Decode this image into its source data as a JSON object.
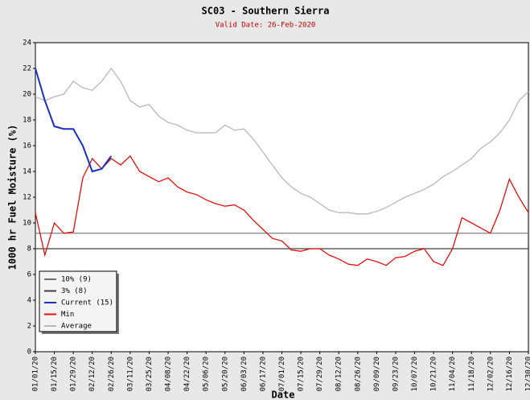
{
  "chart_data": {
    "type": "line",
    "title": "SC03 - Southern Sierra",
    "subtitle": "Valid Date: 26-Feb-2020",
    "x_label": "Date",
    "y_label": "1000 hr Fuel Moisture (%)",
    "categories": [
      "01/01/20",
      null,
      "01/15/20",
      null,
      "01/29/20",
      null,
      "02/12/20",
      null,
      "02/26/20",
      null,
      "03/11/20",
      null,
      "03/25/20",
      null,
      "04/08/20",
      null,
      "04/22/20",
      null,
      "05/06/20",
      null,
      "05/20/20",
      null,
      "06/03/20",
      null,
      "06/17/20",
      null,
      "07/01/20",
      null,
      "07/15/20",
      null,
      "07/29/20",
      null,
      "08/12/20",
      null,
      "08/26/20",
      null,
      "09/09/20",
      null,
      "09/23/20",
      null,
      "10/07/20",
      null,
      "10/21/20",
      null,
      "11/04/20",
      null,
      "11/18/20",
      null,
      "12/02/20",
      null,
      "12/16/20",
      null,
      "12/30/20"
    ],
    "ylim": [
      0,
      24
    ],
    "yticks": [
      0,
      2,
      4,
      6,
      8,
      10,
      12,
      14,
      16,
      18,
      20,
      22,
      24
    ],
    "thresholds": [
      {
        "name": "10% (9)",
        "color": "#707070",
        "value": 9.2
      },
      {
        "name": "3% (8)",
        "color": "#404040",
        "value": 8
      }
    ],
    "series": [
      {
        "name": "Current (15)",
        "color": "#1a2fc0",
        "values": [
          22.0,
          19.5,
          17.5,
          17.3,
          17.3,
          16.0,
          14.0,
          14.2,
          15.2,
          null,
          null,
          null,
          null,
          null,
          null,
          null,
          null,
          null,
          null,
          null,
          null,
          null,
          null,
          null,
          null,
          null,
          null,
          null,
          null,
          null,
          null,
          null,
          null,
          null,
          null,
          null,
          null,
          null,
          null,
          null,
          null,
          null,
          null,
          null,
          null,
          null,
          null,
          null,
          null,
          null,
          null,
          null,
          null
        ]
      },
      {
        "name": "Min",
        "color": "#e01010",
        "values": [
          10.8,
          7.5,
          10.0,
          9.2,
          9.3,
          13.5,
          15.0,
          14.2,
          15.0,
          14.5,
          15.2,
          14.0,
          13.6,
          13.2,
          13.5,
          12.8,
          12.4,
          12.2,
          11.8,
          11.5,
          11.3,
          11.4,
          11.0,
          10.2,
          9.5,
          8.8,
          8.6,
          7.9,
          7.8,
          8.0,
          8.0,
          7.5,
          7.2,
          6.8,
          6.7,
          7.2,
          7.0,
          6.7,
          7.3,
          7.4,
          7.8,
          8.0,
          7.0,
          6.7,
          8.0,
          10.4,
          10.0,
          9.6,
          9.2,
          11.0,
          13.4,
          12.0,
          10.8
        ]
      },
      {
        "name": "Average",
        "color": "#b8b8b8",
        "values": [
          19.8,
          19.5,
          19.8,
          20.0,
          21.0,
          20.5,
          20.3,
          21.0,
          22.0,
          21.0,
          19.5,
          19.0,
          19.2,
          18.3,
          17.8,
          17.6,
          17.2,
          17.0,
          17.0,
          17.0,
          17.6,
          17.2,
          17.3,
          16.5,
          15.5,
          14.5,
          13.5,
          12.8,
          12.3,
          12.0,
          11.5,
          11.0,
          10.8,
          10.8,
          10.7,
          10.7,
          10.9,
          11.2,
          11.6,
          12.0,
          12.3,
          12.6,
          13.0,
          13.6,
          14.0,
          14.5,
          15.0,
          15.8,
          16.3,
          17.0,
          18.0,
          19.5,
          20.2
        ]
      }
    ]
  }
}
